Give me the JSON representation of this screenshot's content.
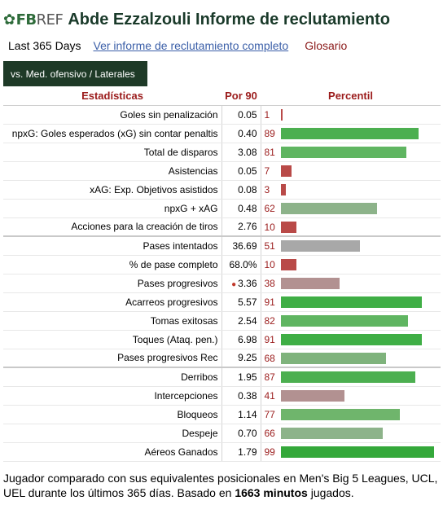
{
  "header": {
    "logo_fb": "FB",
    "logo_ref": "REF",
    "title": "Abde Ezzalzouli Informe de reclutamiento"
  },
  "subnav": {
    "period": "Last 365 Days",
    "full_report_link": "Ver informe de reclutamiento completo",
    "glossary_link": "Glosario"
  },
  "tab": {
    "label": "vs. Med. ofensivo / Laterales"
  },
  "table": {
    "headers": {
      "stat": "Estadísticas",
      "per90": "Por 90",
      "percentile": "Percentil"
    },
    "rows": [
      {
        "stat": "Goles sin penalización",
        "per90": "0.05",
        "pct": 1,
        "pct_label": "1",
        "color": "#b94a48",
        "group_start": false,
        "flag": false
      },
      {
        "stat": "npxG: Goles esperados (xG) sin contar penaltis",
        "per90": "0.40",
        "pct": 89,
        "pct_label": "89",
        "color": "#4caf50",
        "group_start": false,
        "flag": false
      },
      {
        "stat": "Total de disparos",
        "per90": "3.08",
        "pct": 81,
        "pct_label": "81",
        "color": "#5fb561",
        "group_start": false,
        "flag": false
      },
      {
        "stat": "Asistencias",
        "per90": "0.05",
        "pct": 7,
        "pct_label": "7",
        "color": "#b94a48",
        "group_start": false,
        "flag": false
      },
      {
        "stat": "xAG: Exp. Objetivos asistidos",
        "per90": "0.08",
        "pct": 3,
        "pct_label": "3",
        "color": "#b94a48",
        "group_start": false,
        "flag": false
      },
      {
        "stat": "npxG + xAG",
        "per90": "0.48",
        "pct": 62,
        "pct_label": "62",
        "color": "#8db38a",
        "group_start": false,
        "flag": false
      },
      {
        "stat": "Acciones para la creación de tiros",
        "per90": "2.76",
        "pct": 10,
        "pct_label": "10",
        "color": "#b94a48",
        "group_start": false,
        "flag": false
      },
      {
        "stat": "Pases intentados",
        "per90": "36.69",
        "pct": 51,
        "pct_label": "51",
        "color": "#a8a8a8",
        "group_start": true,
        "flag": false
      },
      {
        "stat": "% de pase completo",
        "per90": "68.0%",
        "pct": 10,
        "pct_label": "10",
        "color": "#b94a48",
        "group_start": false,
        "flag": false
      },
      {
        "stat": "Pases progresivos",
        "per90": "3.36",
        "pct": 38,
        "pct_label": "38",
        "color": "#b29191",
        "group_start": false,
        "flag": true
      },
      {
        "stat": "Acarreos progresivos",
        "per90": "5.57",
        "pct": 91,
        "pct_label": "91",
        "color": "#3fae45",
        "group_start": false,
        "flag": false
      },
      {
        "stat": "Tomas exitosas",
        "per90": "2.54",
        "pct": 82,
        "pct_label": "82",
        "color": "#5fb561",
        "group_start": false,
        "flag": false
      },
      {
        "stat": "Toques (Ataq. pen.)",
        "per90": "6.98",
        "pct": 91,
        "pct_label": "91",
        "color": "#3fae45",
        "group_start": false,
        "flag": false
      },
      {
        "stat": "Pases progresivos Rec",
        "per90": "9.25",
        "pct": 68,
        "pct_label": "68",
        "color": "#7fb37c",
        "group_start": false,
        "flag": false
      },
      {
        "stat": "Derribos",
        "per90": "1.95",
        "pct": 87,
        "pct_label": "87",
        "color": "#4caf50",
        "group_start": true,
        "flag": false
      },
      {
        "stat": "Intercepciones",
        "per90": "0.38",
        "pct": 41,
        "pct_label": "41",
        "color": "#b29191",
        "group_start": false,
        "flag": false
      },
      {
        "stat": "Bloqueos",
        "per90": "1.14",
        "pct": 77,
        "pct_label": "77",
        "color": "#6fb56c",
        "group_start": false,
        "flag": false
      },
      {
        "stat": "Despeje",
        "per90": "0.70",
        "pct": 66,
        "pct_label": "66",
        "color": "#8db38a",
        "group_start": false,
        "flag": false
      },
      {
        "stat": "Aéreos Ganados",
        "per90": "1.79",
        "pct": 99,
        "pct_label": "99",
        "color": "#34a83a",
        "group_start": false,
        "flag": false
      }
    ]
  },
  "footer": {
    "text_before": "Jugador comparado con sus equivalentes posicionales en Men's Big 5 Leagues, UCL, UEL durante los últimos 365 días. Basado en ",
    "minutes": "1663 minutos",
    "text_after": " jugados."
  }
}
